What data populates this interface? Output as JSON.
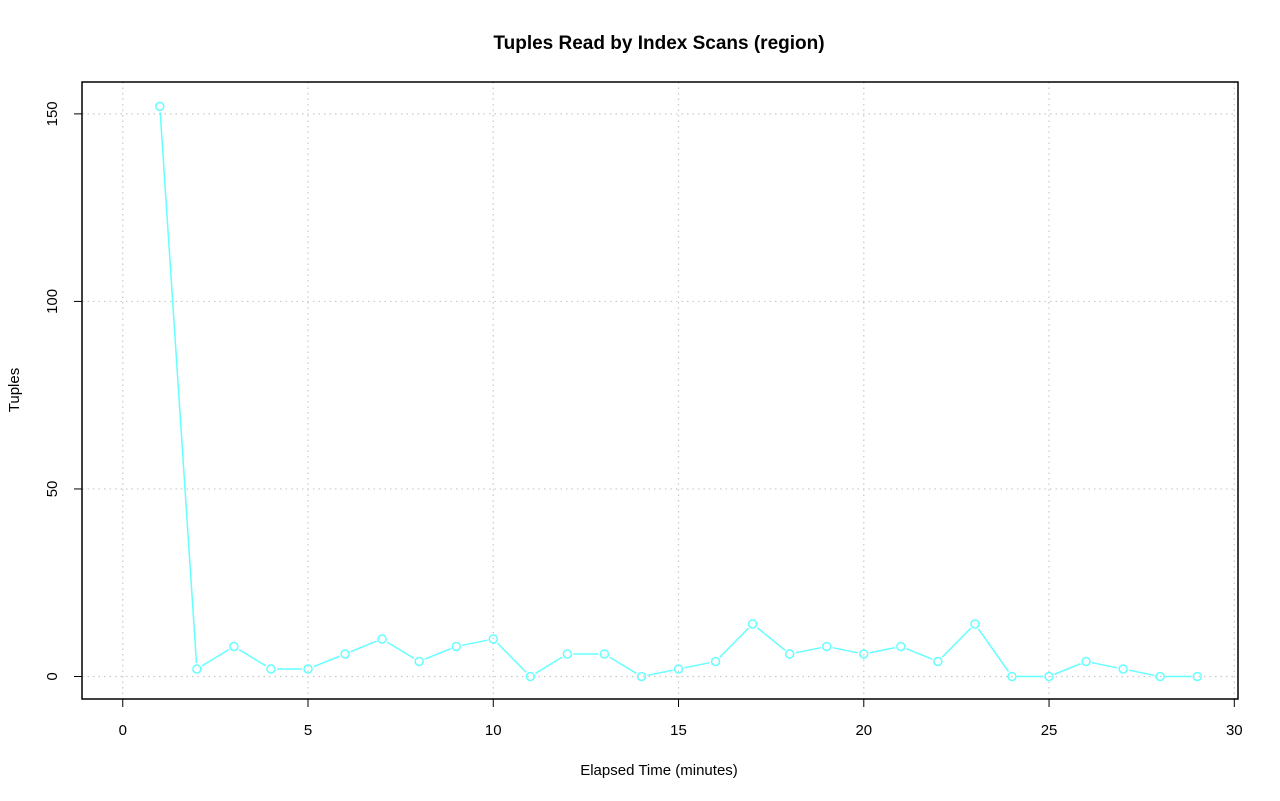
{
  "chart_data": {
    "type": "line",
    "title": "Tuples Read by Index Scans (region)",
    "xlabel": "Elapsed Time (minutes)",
    "ylabel": "Tuples",
    "xlim": [
      -1.1,
      30.1
    ],
    "ylim": [
      -6,
      158.5
    ],
    "xticks": [
      0,
      5,
      10,
      15,
      20,
      25,
      30
    ],
    "yticks": [
      0,
      50,
      100,
      150
    ],
    "grid": true,
    "series_color": "#66ffff",
    "x": [
      1,
      2,
      3,
      4,
      5,
      6,
      7,
      8,
      9,
      10,
      11,
      12,
      13,
      14,
      15,
      16,
      17,
      18,
      19,
      20,
      21,
      22,
      23,
      24,
      25,
      26,
      27,
      28,
      29
    ],
    "y": [
      152,
      2,
      8,
      2,
      2,
      6,
      10,
      4,
      8,
      10,
      0,
      6,
      6,
      0,
      2,
      4,
      14,
      6,
      8,
      6,
      8,
      4,
      14,
      0,
      0,
      4,
      2,
      0,
      0
    ]
  }
}
